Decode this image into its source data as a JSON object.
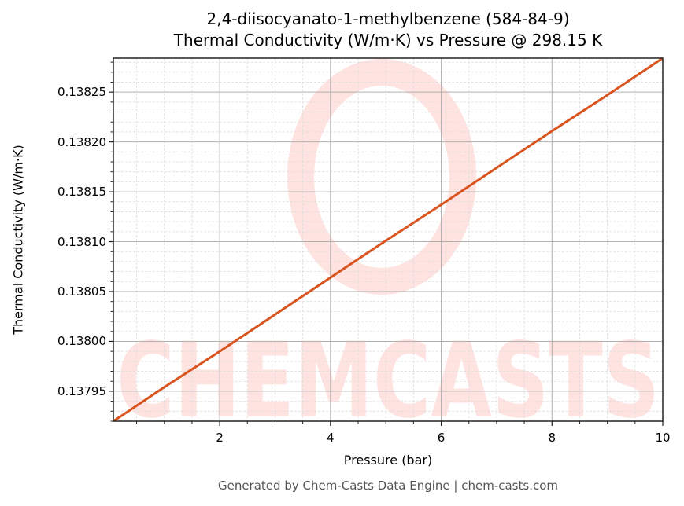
{
  "header": {
    "title_line1": "2,4-diisocyanato-1-methylbenzene (584-84-9)",
    "title_line2": "Thermal Conductivity (W/m·K) vs Pressure @ 298.15 K"
  },
  "footer": {
    "text": "Generated by Chem-Casts Data Engine | chem-casts.com"
  },
  "watermark": {
    "text": "CHEMCASTS",
    "color": "#ffe3e0"
  },
  "colors": {
    "line": "#d9541e",
    "major_grid": "#b0b0b0",
    "minor_grid": "#dddddd",
    "axis": "#222222"
  },
  "chart_data": {
    "type": "line",
    "title": "2,4-diisocyanato-1-methylbenzene (584-84-9)\nThermal Conductivity (W/m·K) vs Pressure @ 298.15 K",
    "xlabel": "Pressure (bar)",
    "ylabel": "Thermal Conductivity (W/m·K)",
    "xlim": [
      0.08,
      10
    ],
    "ylim": [
      0.13792,
      0.138284
    ],
    "xticks": [
      2,
      4,
      6,
      8,
      10
    ],
    "xtick_labels": [
      "2",
      "4",
      "6",
      "8",
      "10"
    ],
    "yticks": [
      0.13795,
      0.138,
      0.13805,
      0.1381,
      0.13815,
      0.1382,
      0.13825
    ],
    "ytick_labels": [
      "0.13795",
      "0.13800",
      "0.13805",
      "0.13810",
      "0.13815",
      "0.13820",
      "0.13825"
    ],
    "grid": true,
    "legend": null,
    "series": [
      {
        "name": "Thermal Conductivity",
        "x": [
          0.08,
          1,
          2,
          3,
          4,
          5,
          6,
          7,
          8,
          9,
          10
        ],
        "y": [
          0.13792,
          0.137954,
          0.13799,
          0.138027,
          0.138064,
          0.138101,
          0.138137,
          0.138174,
          0.138211,
          0.138247,
          0.138284
        ]
      }
    ]
  }
}
